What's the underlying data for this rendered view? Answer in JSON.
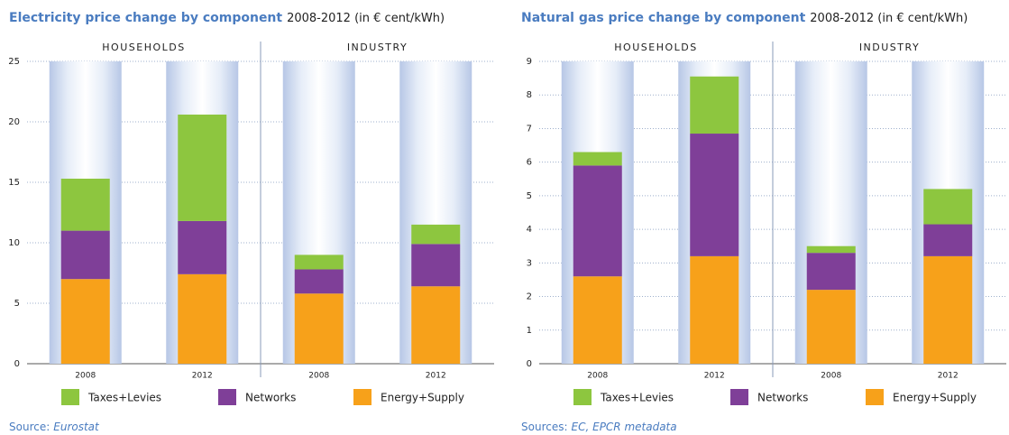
{
  "chart_data": [
    {
      "type": "stacked_bar",
      "title": "Electricity price change by component",
      "subtitle": "2008-2012 (in € cent/kWh)",
      "groups": [
        "HOUSEHOLDS",
        "INDUSTRY"
      ],
      "categories": [
        "2008",
        "2012",
        "2008",
        "2012"
      ],
      "series": [
        {
          "name": "Taxes+Levies",
          "color": "#8dc63f",
          "values": [
            4.3,
            8.8,
            1.2,
            1.6
          ]
        },
        {
          "name": "Networks",
          "color": "#7f3f98",
          "values": [
            4.0,
            4.4,
            2.0,
            3.5
          ]
        },
        {
          "name": "Energy+Supply",
          "color": "#f7a11a",
          "values": [
            7.0,
            7.4,
            5.8,
            6.4
          ]
        }
      ],
      "ylim": [
        0,
        25
      ],
      "yticks": [
        0,
        5,
        10,
        15,
        20,
        25
      ],
      "grid": true,
      "source_label": "Source:",
      "source": "Eurostat"
    },
    {
      "type": "stacked_bar",
      "title": "Natural gas price change by component",
      "subtitle": "2008-2012 (in € cent/kWh)",
      "groups": [
        "HOUSEHOLDS",
        "INDUSTRY"
      ],
      "categories": [
        "2008",
        "2012",
        "2008",
        "2012"
      ],
      "series": [
        {
          "name": "Taxes+Levies",
          "color": "#8dc63f",
          "values": [
            0.4,
            1.7,
            0.2,
            1.05
          ]
        },
        {
          "name": "Networks",
          "color": "#7f3f98",
          "values": [
            3.3,
            3.65,
            1.1,
            0.95
          ]
        },
        {
          "name": "Energy+Supply",
          "color": "#f7a11a",
          "values": [
            2.6,
            3.2,
            2.2,
            3.2
          ]
        }
      ],
      "ylim": [
        0,
        9
      ],
      "yticks": [
        0,
        1,
        2,
        3,
        4,
        5,
        6,
        7,
        8,
        9
      ],
      "grid": true,
      "source_label": "Sources:",
      "source": "EC, EPCR metadata"
    }
  ]
}
